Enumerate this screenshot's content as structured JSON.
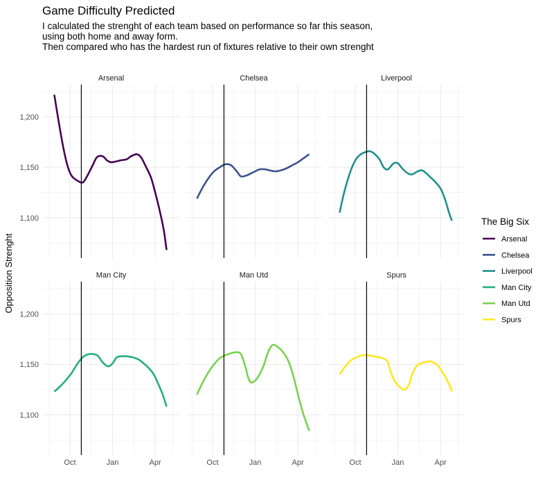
{
  "chart_data": {
    "type": "line",
    "title": "Game Difficulty Predicted",
    "subtitle": [
      "I calculated the strenght of each team based on performance so far this season,",
      "using both home and away form.",
      "Then compared who has the hardest run of fixtures relative to their own strenght"
    ],
    "ylabel": "Opposition Strenght",
    "xlabel": "",
    "x_ticks": [
      "Oct",
      "Jan",
      "Apr"
    ],
    "y_ticks": [
      "1,100",
      "1,150",
      "1,200"
    ],
    "x_tick_values": [
      1.0,
      4.0,
      7.0
    ],
    "y_tick_values": [
      1100,
      1150,
      1200
    ],
    "xlim": [
      -0.9,
      8.7
    ],
    "ylim": [
      1060,
      1232
    ],
    "vline_x": 1.8,
    "grid": true,
    "legend": {
      "title": "The Big Six",
      "position": "right"
    },
    "series": [
      {
        "name": "Arsenal",
        "color": "#440154",
        "x": [
          -0.1,
          0.2,
          0.5,
          0.8,
          1.1,
          1.5,
          1.9,
          2.2,
          2.6,
          2.9,
          3.3,
          3.6,
          3.9,
          4.3,
          4.6,
          5.0,
          5.3,
          5.7,
          6.0,
          6.3,
          6.7,
          7.0,
          7.3,
          7.6,
          7.8
        ],
        "y": [
          1222,
          1196,
          1172,
          1153,
          1142,
          1137,
          1135,
          1141,
          1152,
          1160,
          1161,
          1157,
          1155,
          1156,
          1157,
          1158,
          1161,
          1163,
          1160,
          1152,
          1140,
          1125,
          1108,
          1088,
          1068
        ]
      },
      {
        "name": "Chelsea",
        "color": "#3b528b",
        "x": [
          -0.1,
          0.3,
          0.7,
          1.1,
          1.5,
          1.9,
          2.3,
          2.7,
          3.0,
          3.4,
          3.7,
          4.0,
          4.3,
          4.7,
          5.0,
          5.4,
          5.8,
          6.2,
          6.6,
          7.0,
          7.4,
          7.8
        ],
        "y": [
          1119,
          1130,
          1139,
          1146,
          1150,
          1153,
          1152,
          1146,
          1141,
          1142,
          1144,
          1146,
          1148,
          1148,
          1147,
          1146,
          1147,
          1149,
          1152,
          1155,
          1159,
          1163
        ]
      },
      {
        "name": "Liverpool",
        "color": "#21908c",
        "x": [
          -0.1,
          0.2,
          0.5,
          0.8,
          1.1,
          1.4,
          1.7,
          2.0,
          2.3,
          2.7,
          3.0,
          3.3,
          3.7,
          4.0,
          4.3,
          4.7,
          5.0,
          5.4,
          5.7,
          6.0,
          6.3,
          6.6,
          7.0,
          7.3,
          7.6,
          7.8
        ],
        "y": [
          1105,
          1124,
          1139,
          1151,
          1159,
          1163,
          1165,
          1166,
          1164,
          1158,
          1150,
          1148,
          1154,
          1154,
          1149,
          1144,
          1143,
          1146,
          1147,
          1144,
          1140,
          1136,
          1129,
          1119,
          1105,
          1097
        ]
      },
      {
        "name": "Man City",
        "color": "#27ad81",
        "x": [
          -0.1,
          0.3,
          0.7,
          1.1,
          1.5,
          1.9,
          2.3,
          2.7,
          3.0,
          3.3,
          3.7,
          4.0,
          4.3,
          4.7,
          5.0,
          5.4,
          5.8,
          6.1,
          6.5,
          6.9,
          7.2,
          7.5,
          7.8
        ],
        "y": [
          1123,
          1128,
          1134,
          1141,
          1150,
          1157,
          1160,
          1160,
          1158,
          1152,
          1148,
          1151,
          1157,
          1158,
          1158,
          1157,
          1155,
          1152,
          1147,
          1140,
          1131,
          1121,
          1108
        ]
      },
      {
        "name": "Man Utd",
        "color": "#7ad151",
        "x": [
          -0.1,
          0.3,
          0.7,
          1.1,
          1.5,
          1.9,
          2.3,
          2.7,
          3.0,
          3.3,
          3.5,
          3.7,
          4.0,
          4.3,
          4.6,
          4.8,
          5.0,
          5.2,
          5.4,
          5.6,
          5.9,
          6.2,
          6.5,
          6.8,
          7.1,
          7.4,
          7.7,
          7.8
        ],
        "y": [
          1120,
          1132,
          1142,
          1150,
          1156,
          1159,
          1161,
          1162,
          1160,
          1148,
          1137,
          1132,
          1134,
          1140,
          1149,
          1158,
          1165,
          1169,
          1169,
          1167,
          1163,
          1157,
          1147,
          1132,
          1115,
          1100,
          1088,
          1084
        ]
      },
      {
        "name": "Spurs",
        "color": "#fde725",
        "x": [
          -0.1,
          0.3,
          0.7,
          1.1,
          1.5,
          1.9,
          2.3,
          2.7,
          3.1,
          3.3,
          3.5,
          3.8,
          4.1,
          4.4,
          4.6,
          4.8,
          5.0,
          5.3,
          5.6,
          5.9,
          6.2,
          6.5,
          6.8,
          7.1,
          7.4,
          7.7,
          7.8
        ],
        "y": [
          1140,
          1148,
          1154,
          1157,
          1159,
          1159,
          1158,
          1157,
          1155,
          1152,
          1142,
          1133,
          1128,
          1125,
          1126,
          1131,
          1140,
          1148,
          1151,
          1152,
          1153,
          1152,
          1149,
          1143,
          1136,
          1127,
          1123
        ]
      }
    ],
    "panels": [
      "Arsenal",
      "Chelsea",
      "Liverpool",
      "Man City",
      "Man Utd",
      "Spurs"
    ]
  }
}
